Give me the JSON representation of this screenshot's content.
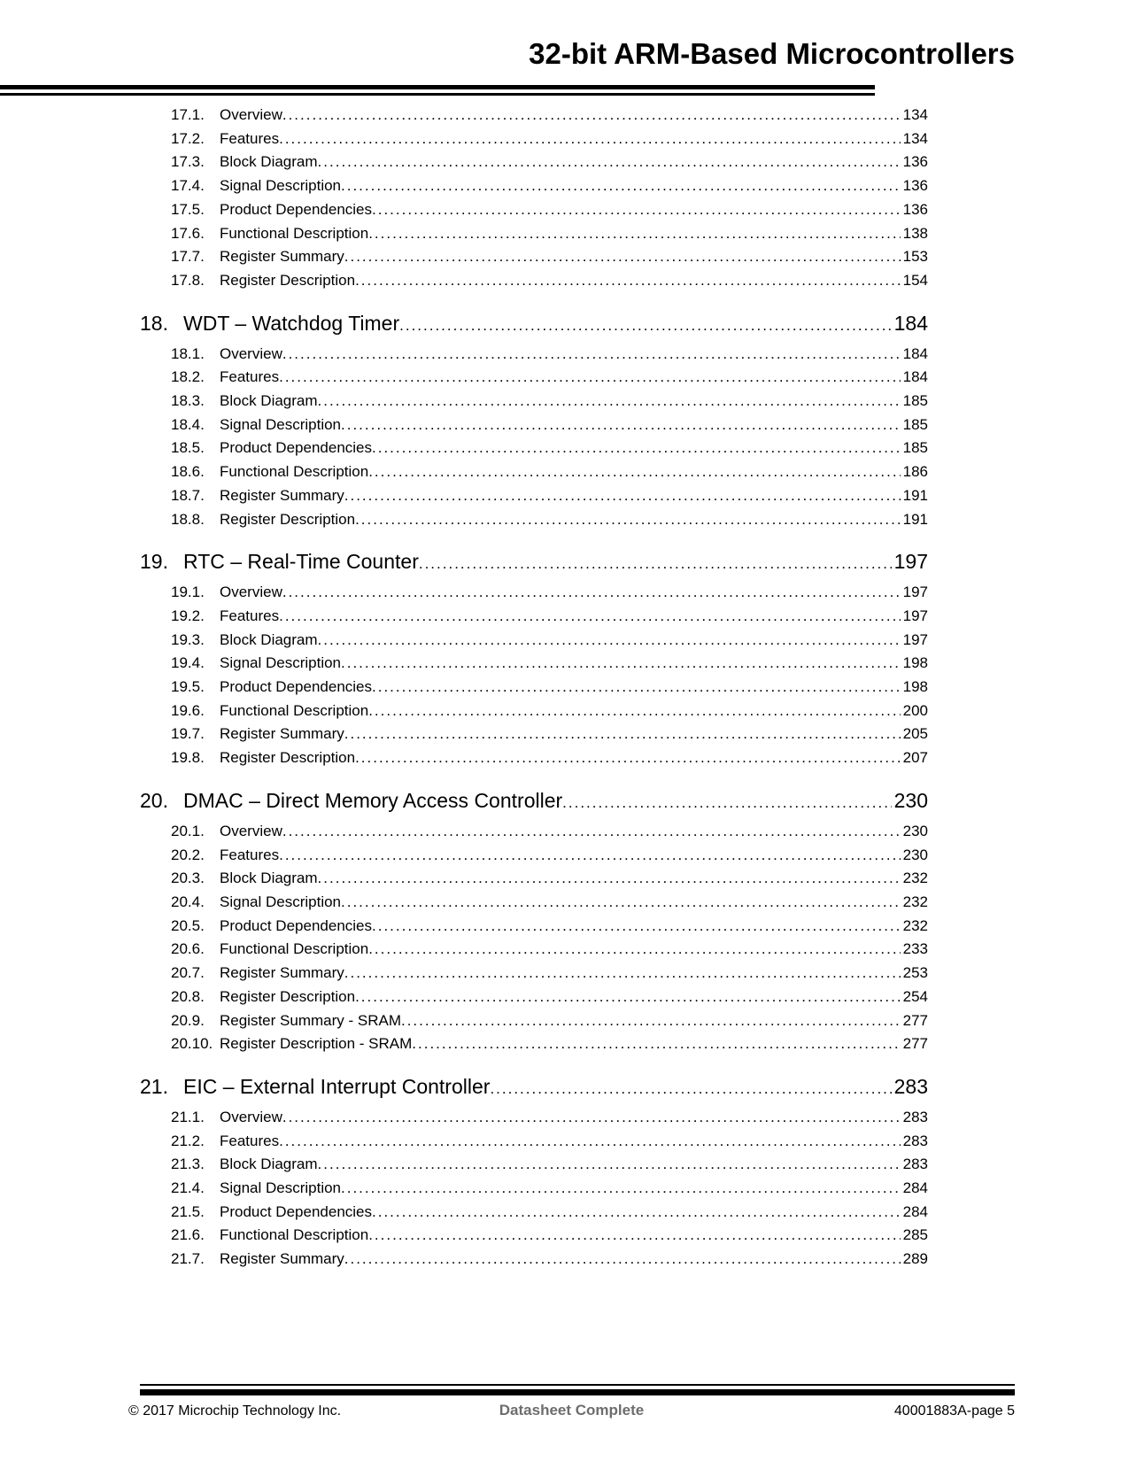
{
  "header": {
    "title": "32-bit ARM-Based Microcontrollers"
  },
  "colors": {
    "text": "#000000",
    "footer_center_text": "#6d6d6d"
  },
  "toc": {
    "sections": [
      {
        "number": null,
        "title": null,
        "page": null,
        "entries": [
          {
            "number": "17.1.",
            "label": "Overview",
            "page": "134"
          },
          {
            "number": "17.2.",
            "label": "Features",
            "page": "134"
          },
          {
            "number": "17.3.",
            "label": "Block Diagram",
            "page": "136"
          },
          {
            "number": "17.4.",
            "label": "Signal Description",
            "page": "136"
          },
          {
            "number": "17.5.",
            "label": "Product Dependencies",
            "page": "136"
          },
          {
            "number": "17.6.",
            "label": "Functional Description",
            "page": "138"
          },
          {
            "number": "17.7.",
            "label": "Register Summary",
            "page": "153"
          },
          {
            "number": "17.8.",
            "label": "Register Description",
            "page": "154"
          }
        ]
      },
      {
        "number": "18.",
        "title": "WDT – Watchdog Timer",
        "page": "184",
        "entries": [
          {
            "number": "18.1.",
            "label": "Overview",
            "page": "184"
          },
          {
            "number": "18.2.",
            "label": "Features",
            "page": "184"
          },
          {
            "number": "18.3.",
            "label": "Block Diagram",
            "page": "185"
          },
          {
            "number": "18.4.",
            "label": "Signal Description",
            "page": "185"
          },
          {
            "number": "18.5.",
            "label": "Product Dependencies",
            "page": "185"
          },
          {
            "number": "18.6.",
            "label": "Functional Description",
            "page": "186"
          },
          {
            "number": "18.7.",
            "label": "Register Summary",
            "page": "191"
          },
          {
            "number": "18.8.",
            "label": "Register Description",
            "page": "191"
          }
        ]
      },
      {
        "number": "19.",
        "title": "RTC – Real-Time Counter",
        "page": "197",
        "entries": [
          {
            "number": "19.1.",
            "label": "Overview",
            "page": "197"
          },
          {
            "number": "19.2.",
            "label": "Features",
            "page": "197"
          },
          {
            "number": "19.3.",
            "label": "Block Diagram",
            "page": "197"
          },
          {
            "number": "19.4.",
            "label": "Signal Description",
            "page": "198"
          },
          {
            "number": "19.5.",
            "label": "Product Dependencies",
            "page": "198"
          },
          {
            "number": "19.6.",
            "label": "Functional Description",
            "page": "200"
          },
          {
            "number": "19.7.",
            "label": "Register Summary",
            "page": "205"
          },
          {
            "number": "19.8.",
            "label": "Register Description",
            "page": "207"
          }
        ]
      },
      {
        "number": "20.",
        "title": "DMAC – Direct Memory Access Controller",
        "page": "230",
        "entries": [
          {
            "number": "20.1.",
            "label": "Overview",
            "page": "230"
          },
          {
            "number": "20.2.",
            "label": "Features",
            "page": "230"
          },
          {
            "number": "20.3.",
            "label": "Block Diagram",
            "page": "232"
          },
          {
            "number": "20.4.",
            "label": "Signal Description",
            "page": "232"
          },
          {
            "number": "20.5.",
            "label": "Product Dependencies",
            "page": "232"
          },
          {
            "number": "20.6.",
            "label": "Functional Description",
            "page": "233"
          },
          {
            "number": "20.7.",
            "label": "Register Summary",
            "page": "253"
          },
          {
            "number": "20.8.",
            "label": "Register Description",
            "page": "254"
          },
          {
            "number": "20.9.",
            "label": "Register Summary - SRAM",
            "page": "277"
          },
          {
            "number": "20.10.",
            "label": "Register Description - SRAM",
            "page": "277"
          }
        ]
      },
      {
        "number": "21.",
        "title": "EIC – External Interrupt Controller",
        "page": "283",
        "entries": [
          {
            "number": "21.1.",
            "label": "Overview",
            "page": "283"
          },
          {
            "number": "21.2.",
            "label": "Features",
            "page": "283"
          },
          {
            "number": "21.3.",
            "label": "Block Diagram",
            "page": "283"
          },
          {
            "number": "21.4.",
            "label": "Signal Description",
            "page": "284"
          },
          {
            "number": "21.5.",
            "label": "Product Dependencies",
            "page": "284"
          },
          {
            "number": "21.6.",
            "label": "Functional Description",
            "page": "285"
          },
          {
            "number": "21.7.",
            "label": "Register Summary",
            "page": "289"
          }
        ]
      }
    ]
  },
  "footer": {
    "copyright": "© 2017 Microchip Technology Inc.",
    "center_label": "Datasheet Complete",
    "page_ref": "40001883A-page 5"
  }
}
